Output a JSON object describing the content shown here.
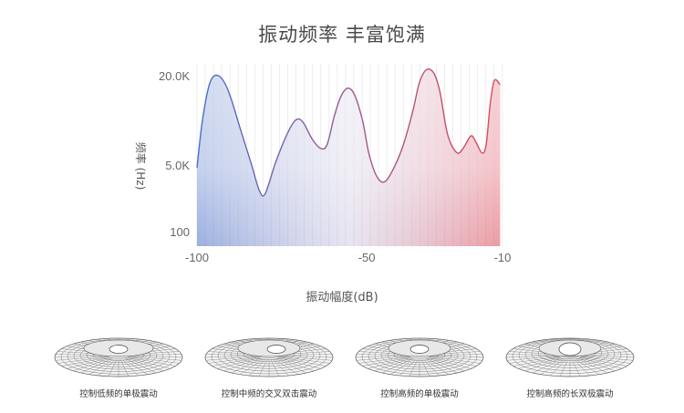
{
  "title": "振动频率 丰富饱满",
  "chart_data": {
    "type": "area",
    "xlabel": "振动幅度(dB)",
    "ylabel": "频率 (Hz)",
    "x_ticks": [
      "-100",
      "-50",
      "-10"
    ],
    "y_ticks": [
      "100",
      "5.0K",
      "20.0K"
    ],
    "xlim": [
      -100,
      -10
    ],
    "grid": "vertical",
    "gradient_colors": [
      "#4a6fc8",
      "#de4a58"
    ],
    "points": [
      [
        -100,
        4800
      ],
      [
        -98.4,
        12500
      ],
      [
        -96.2,
        18800
      ],
      [
        -93.7,
        20000
      ],
      [
        -90.8,
        17500
      ],
      [
        -87.2,
        11000
      ],
      [
        -84,
        5200
      ],
      [
        -81.6,
        3100
      ],
      [
        -79.9,
        2900
      ],
      [
        -76.8,
        5500
      ],
      [
        -73.2,
        10500
      ],
      [
        -70.8,
        12600
      ],
      [
        -68.8,
        12200
      ],
      [
        -66,
        9300
      ],
      [
        -63.6,
        7800
      ],
      [
        -61.7,
        8400
      ],
      [
        -59.6,
        13100
      ],
      [
        -57.7,
        16400
      ],
      [
        -55.6,
        17900
      ],
      [
        -53.6,
        16800
      ],
      [
        -51.2,
        12400
      ],
      [
        -49.3,
        6800
      ],
      [
        -46.9,
        4100
      ],
      [
        -44.5,
        3800
      ],
      [
        -41.6,
        5000
      ],
      [
        -39.1,
        8600
      ],
      [
        -36.4,
        14100
      ],
      [
        -34.5,
        18800
      ],
      [
        -32.4,
        21000
      ],
      [
        -30.2,
        20400
      ],
      [
        -28.4,
        17200
      ],
      [
        -26.2,
        10200
      ],
      [
        -23.5,
        7100
      ],
      [
        -21.6,
        7800
      ],
      [
        -19.3,
        9900
      ],
      [
        -17.8,
        8800
      ],
      [
        -16,
        7000
      ],
      [
        -14.8,
        8500
      ],
      [
        -13.6,
        15400
      ],
      [
        -12.4,
        19200
      ],
      [
        -10.7,
        18500
      ]
    ]
  },
  "samples": [
    {
      "caption": "控制低频的单极震动"
    },
    {
      "caption": "控制中频的交叉双击震动"
    },
    {
      "caption": "控制高频的单极震动"
    },
    {
      "caption": "控制高频的长双极震动"
    }
  ]
}
